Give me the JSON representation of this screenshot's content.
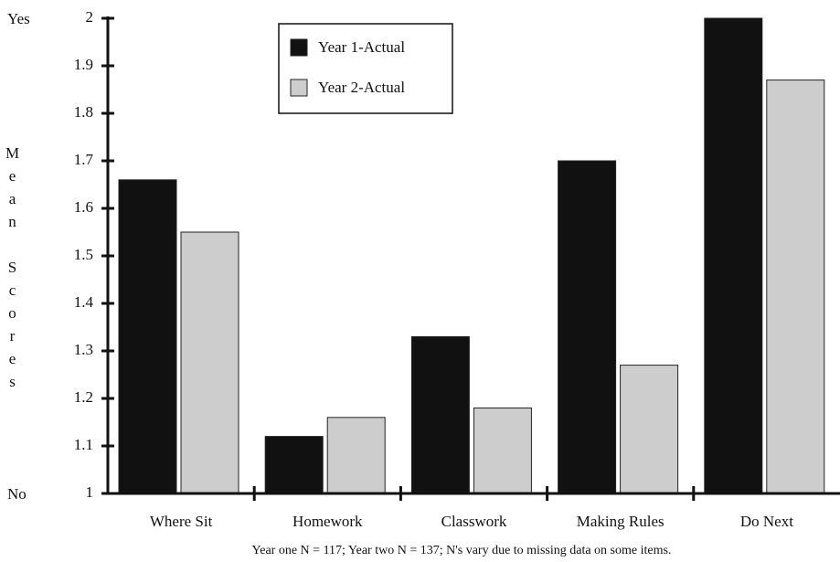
{
  "chart_data": {
    "type": "bar",
    "y_axis_label": "Mean Scores",
    "y_top_label": "Yes",
    "y_bottom_label": "No",
    "categories": [
      "Where Sit",
      "Homework",
      "Classwork",
      "Making Rules",
      "Do Next"
    ],
    "series": [
      {
        "name": "Year 1-Actual",
        "color": "#111111",
        "values": [
          1.66,
          1.12,
          1.33,
          1.7,
          2.0
        ]
      },
      {
        "name": "Year 2-Actual",
        "color": "#cdcdcd",
        "values": [
          1.55,
          1.16,
          1.18,
          1.27,
          1.87
        ]
      }
    ],
    "ylim": [
      1,
      2
    ],
    "yticks": [
      1,
      1.1,
      1.2,
      1.3,
      1.4,
      1.5,
      1.6,
      1.7,
      1.8,
      1.9,
      2
    ],
    "note": "Year one N = 117; Year two N = 137; N's vary due to missing data on some items.",
    "legend": "top-center"
  }
}
